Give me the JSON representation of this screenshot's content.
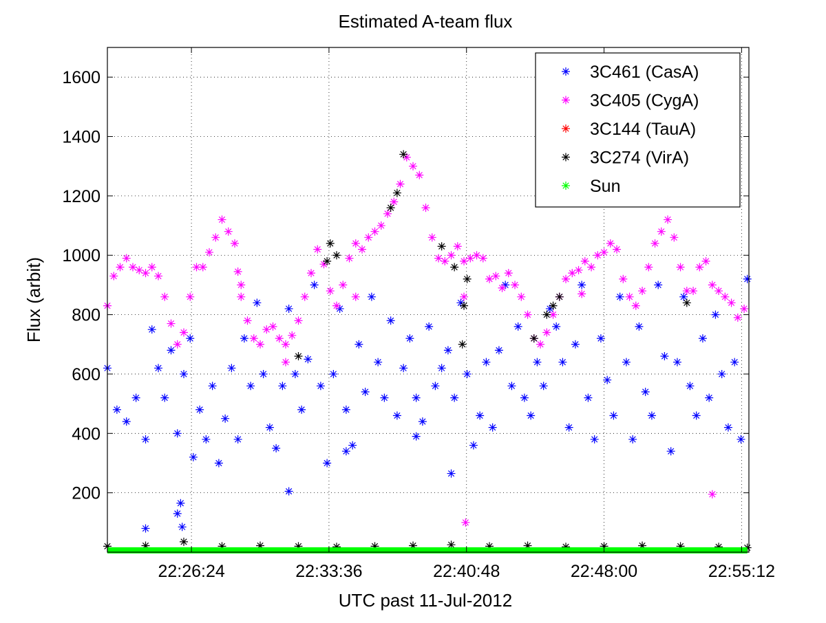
{
  "chart_data": {
    "type": "scatter",
    "title": "Estimated A-team flux",
    "xlabel": "UTC past 11-Jul-2012",
    "ylabel": "Flux (arbit)",
    "x_unit": "UTC time (hh:mm:ss)",
    "xlim": [
      "22:22:00",
      "22:55:35"
    ],
    "ylim": [
      0,
      1700
    ],
    "xticks": [
      "22:26:24",
      "22:33:36",
      "22:40:48",
      "22:48:00",
      "22:55:12"
    ],
    "yticks": [
      200,
      400,
      600,
      800,
      1000,
      1200,
      1400,
      1600
    ],
    "grid": true,
    "legend_position": "top-right",
    "marker": "asterisk",
    "series": [
      {
        "name": "3C461 (CasA)",
        "color": "#0000ff",
        "points": [
          [
            "22:22:00",
            620
          ],
          [
            "22:22:30",
            480
          ],
          [
            "22:23:00",
            440
          ],
          [
            "22:23:30",
            520
          ],
          [
            "22:24:00",
            380
          ],
          [
            "22:24:20",
            750
          ],
          [
            "22:24:40",
            620
          ],
          [
            "22:25:00",
            520
          ],
          [
            "22:25:20",
            680
          ],
          [
            "22:25:40",
            400
          ],
          [
            "22:26:00",
            600
          ],
          [
            "22:26:20",
            720
          ],
          [
            "22:26:30",
            320
          ],
          [
            "22:26:50",
            480
          ],
          [
            "22:27:10",
            380
          ],
          [
            "22:27:30",
            560
          ],
          [
            "22:27:50",
            300
          ],
          [
            "22:28:10",
            450
          ],
          [
            "22:28:30",
            620
          ],
          [
            "22:28:50",
            380
          ],
          [
            "22:29:10",
            720
          ],
          [
            "22:29:30",
            560
          ],
          [
            "22:29:50",
            840
          ],
          [
            "22:30:10",
            600
          ],
          [
            "22:30:30",
            420
          ],
          [
            "22:30:50",
            350
          ],
          [
            "22:31:10",
            560
          ],
          [
            "22:31:30",
            820
          ],
          [
            "22:31:50",
            600
          ],
          [
            "22:32:10",
            480
          ],
          [
            "22:32:30",
            650
          ],
          [
            "22:32:50",
            900
          ],
          [
            "22:33:10",
            560
          ],
          [
            "22:33:30",
            300
          ],
          [
            "22:33:50",
            600
          ],
          [
            "22:34:10",
            820
          ],
          [
            "22:34:30",
            480
          ],
          [
            "22:34:50",
            360
          ],
          [
            "22:35:10",
            700
          ],
          [
            "22:35:30",
            540
          ],
          [
            "22:35:50",
            860
          ],
          [
            "22:36:10",
            640
          ],
          [
            "22:36:30",
            520
          ],
          [
            "22:36:50",
            780
          ],
          [
            "22:37:10",
            460
          ],
          [
            "22:37:30",
            620
          ],
          [
            "22:37:50",
            720
          ],
          [
            "22:38:10",
            520
          ],
          [
            "22:38:30",
            440
          ],
          [
            "22:38:50",
            760
          ],
          [
            "22:39:10",
            560
          ],
          [
            "22:39:30",
            620
          ],
          [
            "22:39:50",
            680
          ],
          [
            "22:40:10",
            520
          ],
          [
            "22:40:30",
            840
          ],
          [
            "22:40:50",
            600
          ],
          [
            "22:41:10",
            360
          ],
          [
            "22:41:30",
            460
          ],
          [
            "22:41:50",
            640
          ],
          [
            "22:42:10",
            420
          ],
          [
            "22:42:30",
            680
          ],
          [
            "22:42:50",
            900
          ],
          [
            "22:43:10",
            560
          ],
          [
            "22:43:30",
            760
          ],
          [
            "22:43:50",
            520
          ],
          [
            "22:44:10",
            460
          ],
          [
            "22:44:30",
            640
          ],
          [
            "22:44:50",
            560
          ],
          [
            "22:45:10",
            820
          ],
          [
            "22:45:30",
            760
          ],
          [
            "22:45:50",
            640
          ],
          [
            "22:46:10",
            420
          ],
          [
            "22:46:30",
            700
          ],
          [
            "22:46:50",
            900
          ],
          [
            "22:47:10",
            520
          ],
          [
            "22:47:30",
            380
          ],
          [
            "22:47:50",
            720
          ],
          [
            "22:48:10",
            580
          ],
          [
            "22:48:30",
            460
          ],
          [
            "22:48:50",
            860
          ],
          [
            "22:49:10",
            640
          ],
          [
            "22:49:30",
            380
          ],
          [
            "22:49:50",
            760
          ],
          [
            "22:50:10",
            540
          ],
          [
            "22:50:30",
            460
          ],
          [
            "22:50:50",
            900
          ],
          [
            "22:51:10",
            660
          ],
          [
            "22:51:30",
            340
          ],
          [
            "22:51:50",
            640
          ],
          [
            "22:52:10",
            860
          ],
          [
            "22:52:30",
            560
          ],
          [
            "22:52:50",
            460
          ],
          [
            "22:53:10",
            720
          ],
          [
            "22:53:30",
            520
          ],
          [
            "22:53:50",
            800
          ],
          [
            "22:54:10",
            600
          ],
          [
            "22:54:30",
            420
          ],
          [
            "22:54:50",
            640
          ],
          [
            "22:55:10",
            380
          ],
          [
            "22:55:30",
            920
          ],
          [
            "22:24:00",
            80
          ],
          [
            "22:25:40",
            130
          ],
          [
            "22:25:50",
            165
          ],
          [
            "22:25:55",
            85
          ],
          [
            "22:31:30",
            205
          ],
          [
            "22:40:00",
            265
          ],
          [
            "22:38:10",
            390
          ],
          [
            "22:34:30",
            340
          ]
        ]
      },
      {
        "name": "3C405 (CygA)",
        "color": "#ff00ff",
        "points": [
          [
            "22:22:00",
            830
          ],
          [
            "22:22:20",
            930
          ],
          [
            "22:22:40",
            960
          ],
          [
            "22:23:00",
            990
          ],
          [
            "22:23:20",
            960
          ],
          [
            "22:23:40",
            950
          ],
          [
            "22:24:00",
            940
          ],
          [
            "22:24:20",
            960
          ],
          [
            "22:24:40",
            930
          ],
          [
            "22:25:00",
            860
          ],
          [
            "22:25:20",
            770
          ],
          [
            "22:25:40",
            700
          ],
          [
            "22:26:00",
            740
          ],
          [
            "22:26:20",
            860
          ],
          [
            "22:26:40",
            960
          ],
          [
            "22:27:00",
            960
          ],
          [
            "22:27:20",
            1010
          ],
          [
            "22:27:40",
            1060
          ],
          [
            "22:28:00",
            1120
          ],
          [
            "22:28:20",
            1080
          ],
          [
            "22:28:40",
            1040
          ],
          [
            "22:29:00",
            860
          ],
          [
            "22:29:20",
            780
          ],
          [
            "22:29:40",
            720
          ],
          [
            "22:30:00",
            700
          ],
          [
            "22:30:20",
            750
          ],
          [
            "22:30:40",
            760
          ],
          [
            "22:31:00",
            720
          ],
          [
            "22:31:20",
            700
          ],
          [
            "22:31:40",
            730
          ],
          [
            "22:32:00",
            780
          ],
          [
            "22:32:20",
            860
          ],
          [
            "22:32:40",
            940
          ],
          [
            "22:33:00",
            1020
          ],
          [
            "22:33:20",
            970
          ],
          [
            "22:33:40",
            880
          ],
          [
            "22:34:00",
            830
          ],
          [
            "22:34:20",
            900
          ],
          [
            "22:34:40",
            990
          ],
          [
            "22:35:00",
            1040
          ],
          [
            "22:35:20",
            1020
          ],
          [
            "22:35:40",
            1060
          ],
          [
            "22:36:00",
            1080
          ],
          [
            "22:36:20",
            1100
          ],
          [
            "22:36:40",
            1140
          ],
          [
            "22:37:00",
            1180
          ],
          [
            "22:37:20",
            1240
          ],
          [
            "22:37:40",
            1330
          ],
          [
            "22:38:00",
            1300
          ],
          [
            "22:38:20",
            1270
          ],
          [
            "22:38:40",
            1160
          ],
          [
            "22:39:00",
            1060
          ],
          [
            "22:39:20",
            990
          ],
          [
            "22:39:40",
            980
          ],
          [
            "22:40:00",
            1000
          ],
          [
            "22:40:20",
            1030
          ],
          [
            "22:40:40",
            980
          ],
          [
            "22:41:00",
            990
          ],
          [
            "22:41:20",
            1000
          ],
          [
            "22:41:40",
            990
          ],
          [
            "22:42:00",
            920
          ],
          [
            "22:42:20",
            930
          ],
          [
            "22:42:40",
            890
          ],
          [
            "22:43:00",
            940
          ],
          [
            "22:43:20",
            900
          ],
          [
            "22:43:40",
            860
          ],
          [
            "22:44:00",
            800
          ],
          [
            "22:44:20",
            720
          ],
          [
            "22:44:40",
            700
          ],
          [
            "22:45:00",
            740
          ],
          [
            "22:45:20",
            800
          ],
          [
            "22:45:40",
            860
          ],
          [
            "22:46:00",
            920
          ],
          [
            "22:46:20",
            940
          ],
          [
            "22:46:40",
            950
          ],
          [
            "22:47:00",
            980
          ],
          [
            "22:47:20",
            960
          ],
          [
            "22:47:40",
            1000
          ],
          [
            "22:48:00",
            1010
          ],
          [
            "22:48:20",
            1040
          ],
          [
            "22:48:40",
            1020
          ],
          [
            "22:49:00",
            920
          ],
          [
            "22:49:20",
            860
          ],
          [
            "22:49:40",
            830
          ],
          [
            "22:50:00",
            880
          ],
          [
            "22:50:20",
            960
          ],
          [
            "22:50:40",
            1040
          ],
          [
            "22:51:00",
            1080
          ],
          [
            "22:51:20",
            1120
          ],
          [
            "22:51:40",
            1060
          ],
          [
            "22:52:00",
            960
          ],
          [
            "22:52:20",
            880
          ],
          [
            "22:52:40",
            880
          ],
          [
            "22:53:00",
            960
          ],
          [
            "22:53:20",
            980
          ],
          [
            "22:53:40",
            900
          ],
          [
            "22:54:00",
            880
          ],
          [
            "22:54:20",
            860
          ],
          [
            "22:54:40",
            840
          ],
          [
            "22:55:00",
            790
          ],
          [
            "22:55:20",
            820
          ],
          [
            "22:28:50",
            945
          ],
          [
            "22:29:00",
            900
          ],
          [
            "22:35:00",
            860
          ],
          [
            "22:40:40",
            860
          ],
          [
            "22:40:45",
            100
          ],
          [
            "22:46:50",
            870
          ],
          [
            "22:53:40",
            195
          ],
          [
            "22:31:20",
            640
          ]
        ]
      },
      {
        "name": "3C144 (TauA)",
        "color": "#ff0000",
        "points": []
      },
      {
        "name": "3C274 (VirA)",
        "color": "#000000",
        "points": [
          [
            "22:33:40",
            1040
          ],
          [
            "22:33:30",
            980
          ],
          [
            "22:34:00",
            1000
          ],
          [
            "22:36:50",
            1160
          ],
          [
            "22:37:10",
            1210
          ],
          [
            "22:37:30",
            1340
          ],
          [
            "22:39:30",
            1030
          ],
          [
            "22:40:10",
            960
          ],
          [
            "22:40:50",
            920
          ],
          [
            "22:40:40",
            830
          ],
          [
            "22:40:35",
            700
          ],
          [
            "22:44:20",
            720
          ],
          [
            "22:45:00",
            800
          ],
          [
            "22:45:20",
            830
          ],
          [
            "22:45:40",
            860
          ],
          [
            "22:52:20",
            840
          ],
          [
            "22:32:00",
            660
          ],
          [
            "22:22:00",
            20
          ],
          [
            "22:24:00",
            22
          ],
          [
            "22:26:00",
            35
          ],
          [
            "22:28:00",
            20
          ],
          [
            "22:30:00",
            22
          ],
          [
            "22:32:00",
            20
          ],
          [
            "22:34:00",
            18
          ],
          [
            "22:36:00",
            20
          ],
          [
            "22:38:00",
            22
          ],
          [
            "22:40:00",
            25
          ],
          [
            "22:42:00",
            20
          ],
          [
            "22:44:00",
            22
          ],
          [
            "22:46:00",
            18
          ],
          [
            "22:48:00",
            20
          ],
          [
            "22:50:00",
            22
          ],
          [
            "22:52:00",
            20
          ],
          [
            "22:54:00",
            18
          ],
          [
            "22:55:30",
            15
          ]
        ]
      },
      {
        "name": "Sun",
        "color": "#00ff00",
        "y_approx": 5,
        "x_range": [
          "22:22:00",
          "22:55:30"
        ]
      }
    ]
  }
}
